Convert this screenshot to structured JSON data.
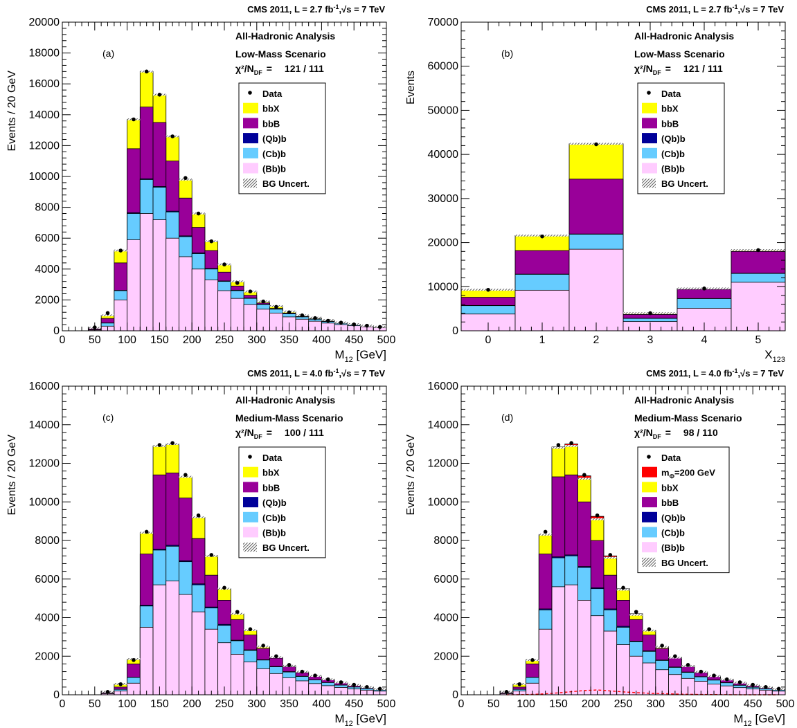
{
  "colors": {
    "bbX": "#ffff00",
    "bbB": "#990099",
    "Qbb": "#000099",
    "Cbb": "#66ccff",
    "Bbb": "#ffccff",
    "signal": "#ff0000",
    "data": "#000000"
  },
  "chart_data": [
    {
      "type": "bar",
      "panel_label": "(a)",
      "header": "CMS 2011, L = 2.7  fb",
      "header_sup": "-1",
      "header_tail": ",√s = 7 TeV",
      "analysis": "All-Hadronic Analysis",
      "scenario": "Low-Mass Scenario",
      "chi2_label": "χ²/N",
      "chi2_sub": "DF",
      "chi2_value": "121 / 111",
      "xlabel": "M",
      "xlabel_sub": "12",
      "xlabel_unit": " [GeV]",
      "ylabel": "Events / 20 GeV",
      "xlim": [
        0,
        500
      ],
      "ylim": [
        0,
        20000
      ],
      "xticks": [
        "0",
        "50",
        "100",
        "150",
        "200",
        "250",
        "300",
        "350",
        "400",
        "450",
        "500"
      ],
      "yticks": [
        "0",
        "2000",
        "4000",
        "6000",
        "8000",
        "10000",
        "12000",
        "14000",
        "16000",
        "18000",
        "20000"
      ],
      "bin_edges": [
        40,
        60,
        80,
        100,
        120,
        140,
        160,
        180,
        200,
        220,
        240,
        260,
        280,
        300,
        320,
        340,
        360,
        380,
        400,
        420,
        440,
        460,
        480,
        500
      ],
      "legend": [
        {
          "key": "data",
          "label": "Data"
        },
        {
          "key": "bbX",
          "label": "bbX"
        },
        {
          "key": "bbB",
          "label": "bbB"
        },
        {
          "key": "Qbb",
          "label": "(Qb)b"
        },
        {
          "key": "Cbb",
          "label": "(Cb)b"
        },
        {
          "key": "Bbb",
          "label": "(Bb)b"
        },
        {
          "key": "unc",
          "label": "BG Uncert."
        }
      ],
      "series": [
        {
          "key": "Bbb",
          "name": "(Bb)b",
          "values": [
            50,
            300,
            2000,
            5900,
            7600,
            7200,
            6000,
            4800,
            4000,
            3300,
            2600,
            2100,
            1700,
            1400,
            1150,
            900,
            750,
            620,
            500,
            400,
            330,
            260,
            200
          ]
        },
        {
          "key": "Cbb",
          "name": "(Cb)b",
          "values": [
            70,
            500,
            2600,
            7600,
            9800,
            9300,
            7700,
            6100,
            5000,
            4000,
            3200,
            2600,
            2100,
            1700,
            1400,
            1100,
            900,
            750,
            600,
            480,
            390,
            300,
            240
          ]
        },
        {
          "key": "Qbb",
          "name": "(Qb)b",
          "values": [
            72,
            510,
            2620,
            7650,
            9850,
            9350,
            7750,
            6150,
            5050,
            4040,
            3230,
            2630,
            2120,
            1720,
            1420,
            1110,
            910,
            760,
            610,
            490,
            395,
            305,
            245
          ]
        },
        {
          "key": "bbB",
          "name": "bbB",
          "values": [
            140,
            800,
            4400,
            11800,
            14500,
            13500,
            11000,
            8600,
            6700,
            5200,
            3800,
            2900,
            2300,
            1800,
            1450,
            1150,
            930,
            780,
            630,
            500,
            400,
            310,
            250
          ]
        },
        {
          "key": "bbX",
          "name": "bbX",
          "values": [
            190,
            1000,
            5200,
            13700,
            16800,
            15300,
            12600,
            9800,
            7600,
            5800,
            4300,
            3200,
            2550,
            1900,
            1600,
            1250,
            1000,
            850,
            700,
            540,
            430,
            330,
            260
          ]
        }
      ],
      "data": [
        220,
        1150,
        5200,
        13700,
        16800,
        15300,
        12600,
        9900,
        7600,
        5800,
        4300,
        3100,
        2550,
        1900,
        1550,
        1200,
        1000,
        820,
        650,
        530,
        410,
        330,
        250
      ]
    },
    {
      "type": "bar",
      "panel_label": "(b)",
      "header": "CMS 2011, L = 2.7  fb",
      "header_sup": "-1",
      "header_tail": ",√s = 7 TeV",
      "analysis": "All-Hadronic Analysis",
      "scenario": "Low-Mass Scenario",
      "chi2_label": "χ²/N",
      "chi2_sub": "DF",
      "chi2_value": "121 / 111",
      "xlabel": "X",
      "xlabel_sub": "123",
      "xlabel_unit": "",
      "ylabel": "Events",
      "xlim": [
        -0.5,
        5.5
      ],
      "ylim": [
        0,
        70000
      ],
      "xticks": [
        "0",
        "1",
        "2",
        "3",
        "4",
        "5"
      ],
      "yticks": [
        "0",
        "10000",
        "20000",
        "30000",
        "40000",
        "50000",
        "60000",
        "70000"
      ],
      "bin_edges": [
        -0.5,
        0.5,
        1.5,
        2.5,
        3.5,
        4.5,
        5.5
      ],
      "legend": [
        {
          "key": "data",
          "label": "Data"
        },
        {
          "key": "bbX",
          "label": "bbX"
        },
        {
          "key": "bbB",
          "label": "bbB"
        },
        {
          "key": "Qbb",
          "label": "(Qb)b"
        },
        {
          "key": "Cbb",
          "label": "(Cb)b"
        },
        {
          "key": "Bbb",
          "label": "(Bb)b"
        },
        {
          "key": "unc",
          "label": "BG Uncert."
        }
      ],
      "series": [
        {
          "key": "Bbb",
          "name": "(Bb)b",
          "values": [
            3800,
            9200,
            18500,
            2100,
            5100,
            11000
          ]
        },
        {
          "key": "Cbb",
          "name": "(Cb)b",
          "values": [
            5700,
            12800,
            21900,
            2800,
            7300,
            13000
          ]
        },
        {
          "key": "Qbb",
          "name": "(Qb)b",
          "values": [
            5750,
            12850,
            21950,
            2830,
            7330,
            13050
          ]
        },
        {
          "key": "bbB",
          "name": "bbB",
          "values": [
            7600,
            18200,
            34400,
            3700,
            9400,
            18000
          ]
        },
        {
          "key": "bbX",
          "name": "bbX",
          "values": [
            9300,
            21600,
            42400,
            4000,
            9600,
            18300
          ]
        }
      ],
      "data": [
        9300,
        21400,
        42300,
        4000,
        9600,
        18300
      ]
    },
    {
      "type": "bar",
      "panel_label": "(c)",
      "header": "CMS 2011, L = 4.0  fb",
      "header_sup": "-1",
      "header_tail": ",√s = 7 TeV",
      "analysis": "All-Hadronic Analysis",
      "scenario": "Medium-Mass Scenario",
      "chi2_label": "χ²/N",
      "chi2_sub": "DF",
      "chi2_value": "100 / 111",
      "xlabel": "M",
      "xlabel_sub": "12",
      "xlabel_unit": " [GeV]",
      "ylabel": "Events / 20 GeV",
      "xlim": [
        0,
        500
      ],
      "ylim": [
        0,
        16000
      ],
      "xticks": [
        "0",
        "50",
        "100",
        "150",
        "200",
        "250",
        "300",
        "350",
        "400",
        "450",
        "500"
      ],
      "yticks": [
        "0",
        "2000",
        "4000",
        "6000",
        "8000",
        "10000",
        "12000",
        "14000",
        "16000"
      ],
      "bin_edges": [
        60,
        80,
        100,
        120,
        140,
        160,
        180,
        200,
        220,
        240,
        260,
        280,
        300,
        320,
        340,
        360,
        380,
        400,
        420,
        440,
        460,
        480,
        500
      ],
      "legend": [
        {
          "key": "data",
          "label": "Data"
        },
        {
          "key": "bbX",
          "label": "bbX"
        },
        {
          "key": "bbB",
          "label": "bbB"
        },
        {
          "key": "Qbb",
          "label": "(Qb)b"
        },
        {
          "key": "Cbb",
          "label": "(Cb)b"
        },
        {
          "key": "Bbb",
          "label": "(Bb)b"
        },
        {
          "key": "unc",
          "label": "BG Uncert."
        }
      ],
      "series": [
        {
          "key": "Bbb",
          "name": "(Bb)b",
          "values": [
            60,
            200,
            600,
            3500,
            5700,
            5900,
            5200,
            4300,
            3400,
            2700,
            2100,
            1700,
            1350,
            1100,
            880,
            720,
            580,
            470,
            380,
            300,
            240,
            190
          ]
        },
        {
          "key": "Cbb",
          "name": "(Cb)b",
          "values": [
            80,
            280,
            900,
            4600,
            7500,
            7700,
            6900,
            5700,
            4500,
            3600,
            2800,
            2300,
            1800,
            1450,
            1180,
            950,
            770,
            630,
            500,
            400,
            320,
            250
          ]
        },
        {
          "key": "Qbb",
          "name": "(Qb)b",
          "values": [
            82,
            285,
            910,
            4650,
            7550,
            7750,
            6950,
            5750,
            4550,
            3650,
            2830,
            2330,
            1820,
            1470,
            1200,
            960,
            780,
            640,
            510,
            410,
            325,
            255
          ]
        },
        {
          "key": "bbB",
          "name": "bbB",
          "values": [
            130,
            400,
            1600,
            7300,
            11400,
            11500,
            10200,
            8100,
            6200,
            4900,
            3900,
            3100,
            2400,
            1900,
            1450,
            1150,
            950,
            780,
            620,
            500,
            390,
            300
          ]
        },
        {
          "key": "bbX",
          "name": "bbX",
          "values": [
            160,
            560,
            1850,
            8400,
            12900,
            13000,
            11300,
            9200,
            7200,
            5500,
            4200,
            3350,
            2500,
            1950,
            1500,
            1200,
            980,
            800,
            640,
            510,
            400,
            300
          ]
        }
      ],
      "data": [
        150,
        550,
        1800,
        8450,
        12950,
        13050,
        11400,
        9300,
        7250,
        5550,
        4300,
        3400,
        2550,
        2000,
        1550,
        1200,
        1000,
        800,
        650,
        520,
        400,
        310
      ]
    },
    {
      "type": "bar",
      "panel_label": "(d)",
      "header": "CMS 2011, L = 4.0  fb",
      "header_sup": "-1",
      "header_tail": ",√s = 7 TeV",
      "analysis": "All-Hadronic Analysis",
      "scenario": "Medium-Mass Scenario",
      "chi2_label": "χ²/N",
      "chi2_sub": "DF",
      "chi2_value": "98 / 110",
      "xlabel": "M",
      "xlabel_sub": "12",
      "xlabel_unit": " [GeV]",
      "ylabel": "Events / 20 GeV",
      "xlim": [
        0,
        500
      ],
      "ylim": [
        0,
        16000
      ],
      "xticks": [
        "0",
        "50",
        "100",
        "150",
        "200",
        "250",
        "300",
        "350",
        "400",
        "450",
        "500"
      ],
      "yticks": [
        "0",
        "2000",
        "4000",
        "6000",
        "8000",
        "10000",
        "12000",
        "14000",
        "16000"
      ],
      "bin_edges": [
        60,
        80,
        100,
        120,
        140,
        160,
        180,
        200,
        220,
        240,
        260,
        280,
        300,
        320,
        340,
        360,
        380,
        400,
        420,
        440,
        460,
        480,
        500
      ],
      "legend": [
        {
          "key": "data",
          "label": "Data"
        },
        {
          "key": "signal",
          "label": "m",
          "sub": "Φ",
          "tail": "=200 GeV"
        },
        {
          "key": "bbX",
          "label": "bbX"
        },
        {
          "key": "bbB",
          "label": "bbB"
        },
        {
          "key": "Qbb",
          "label": "(Qb)b"
        },
        {
          "key": "Cbb",
          "label": "(Cb)b"
        },
        {
          "key": "Bbb",
          "label": "(Bb)b"
        },
        {
          "key": "unc",
          "label": "BG Uncert."
        }
      ],
      "series": [
        {
          "key": "Bbb",
          "name": "(Bb)b",
          "values": [
            60,
            200,
            600,
            3400,
            5600,
            5700,
            4900,
            4100,
            3300,
            2600,
            2000,
            1650,
            1300,
            1050,
            850,
            700,
            560,
            460,
            370,
            300,
            240,
            190
          ]
        },
        {
          "key": "Cbb",
          "name": "(Cb)b",
          "values": [
            80,
            280,
            900,
            4400,
            7100,
            7200,
            6600,
            5500,
            4400,
            3500,
            2750,
            2250,
            1780,
            1420,
            1160,
            930,
            760,
            620,
            490,
            390,
            310,
            250
          ]
        },
        {
          "key": "Qbb",
          "name": "(Qb)b",
          "values": [
            82,
            285,
            910,
            4450,
            7150,
            7250,
            6650,
            5550,
            4450,
            3550,
            2780,
            2280,
            1800,
            1440,
            1180,
            940,
            770,
            630,
            500,
            400,
            315,
            255
          ]
        },
        {
          "key": "bbB",
          "name": "bbB",
          "values": [
            130,
            400,
            1600,
            7300,
            11300,
            11400,
            10000,
            8000,
            6200,
            4900,
            3900,
            3100,
            2400,
            1900,
            1450,
            1150,
            950,
            780,
            620,
            500,
            390,
            300
          ]
        },
        {
          "key": "bbX",
          "name": "bbX",
          "values": [
            160,
            560,
            1800,
            8300,
            12800,
            12900,
            11200,
            9100,
            7100,
            5450,
            4150,
            3330,
            2480,
            1930,
            1490,
            1190,
            970,
            790,
            630,
            505,
            395,
            300
          ]
        },
        {
          "key": "signal",
          "name": "mΦ=200 GeV",
          "values": [
            160,
            560,
            1810,
            8320,
            12850,
            13000,
            11350,
            9250,
            7200,
            5500,
            4200,
            3350,
            2500,
            1950,
            1500,
            1200,
            980,
            800,
            640,
            510,
            400,
            305
          ]
        }
      ],
      "signal_curve": [
        0,
        5,
        20,
        50,
        100,
        160,
        220,
        250,
        200,
        150,
        110,
        80,
        60,
        40,
        25,
        15,
        10,
        5,
        0,
        0,
        0,
        0
      ],
      "data": [
        150,
        550,
        1800,
        8450,
        12950,
        13050,
        11400,
        9300,
        7250,
        5550,
        4300,
        3400,
        2550,
        2000,
        1550,
        1200,
        1000,
        800,
        650,
        520,
        400,
        310
      ]
    }
  ]
}
